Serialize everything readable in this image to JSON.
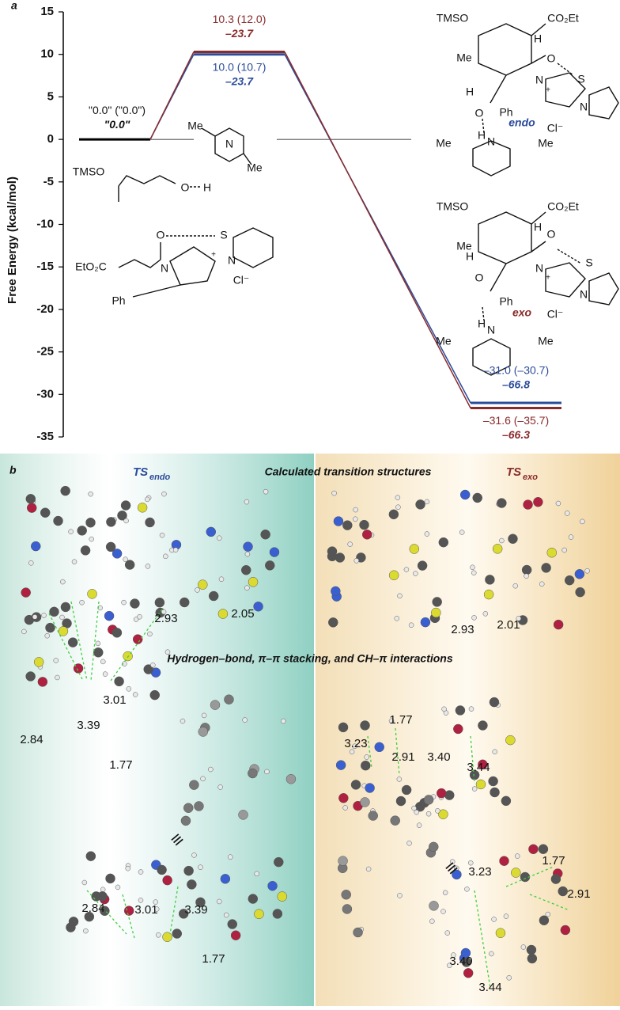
{
  "chart_data": {
    "type": "energy-profile",
    "panel_label": "a",
    "y_label": "Free Energy (kcal/mol)",
    "categories": [
      null,
      null,
      null
    ],
    "ylim": [
      -35,
      15
    ],
    "yticks": [
      -35,
      -30,
      -25,
      -20,
      -15,
      -10,
      -5,
      0,
      5,
      10,
      15
    ],
    "start_label": "\"0.0\" (\"0.0\")",
    "start_secondary_label": "\"0.0\"",
    "start_color": "#000000",
    "series": [
      {
        "color": "#2b4c9b",
        "values": [
          0,
          10.0,
          -31.0
        ],
        "value_labels": [
          null,
          "10.0 (10.7)",
          "–31.0 (–30.7)"
        ],
        "secondary_labels": [
          null,
          "–23.7",
          "–66.8"
        ]
      },
      {
        "color": "#8a2b2b",
        "values": [
          0,
          10.3,
          -31.6
        ],
        "value_labels": [
          null,
          "10.3 (12.0)",
          "–31.6 (–35.7)"
        ],
        "secondary_labels": [
          null,
          "–23.7",
          "–66.3"
        ]
      }
    ]
  },
  "structures": {
    "reagents": [
      "Me",
      "N",
      "Me",
      "TMSO",
      "O",
      "H",
      "O",
      "S",
      "EtO₂C",
      "N",
      "+",
      "N",
      "Cl⁻",
      "Ph"
    ],
    "endo": [
      "TMSO",
      "CO₂Et",
      "H",
      "Me",
      "O",
      "S",
      "H",
      "N",
      "+",
      "O",
      "Ph",
      "N",
      "H",
      "endo",
      "Cl⁻",
      "N",
      "Me",
      "Me"
    ],
    "exo": [
      "TMSO",
      "CO₂Et",
      "H",
      "Me",
      "O",
      "S",
      "H",
      "N",
      "+",
      "O",
      "Ph",
      "N",
      "H",
      "exo",
      "Cl⁻",
      "N",
      "Me",
      "Me"
    ]
  },
  "panel_b": {
    "panel_label": "b",
    "title": "Calculated transition structures",
    "ts_endo": {
      "main": "TS",
      "sub": "endo"
    },
    "ts_exo": {
      "main": "TS",
      "sub": "exo"
    },
    "subtitle": "Hydrogen–bond, π–π stacking, and CH–π interactions",
    "endo_distances": [
      "2.93",
      "2.05"
    ],
    "exo_distances": [
      "2.93",
      "2.01"
    ],
    "endo_interactions": [
      "2.84",
      "3.39",
      "3.01",
      "1.77"
    ],
    "endo_equiv": "≡",
    "endo_interactions_alt": [
      "2.84",
      "3.01",
      "3.39",
      "1.77"
    ],
    "exo_interactions": [
      "1.77",
      "3.23",
      "2.91",
      "3.40",
      "3.44"
    ],
    "exo_equiv": "≡",
    "exo_interactions_alt": [
      "1.77",
      "3.23",
      "2.91",
      "3.40",
      "3.44"
    ]
  }
}
